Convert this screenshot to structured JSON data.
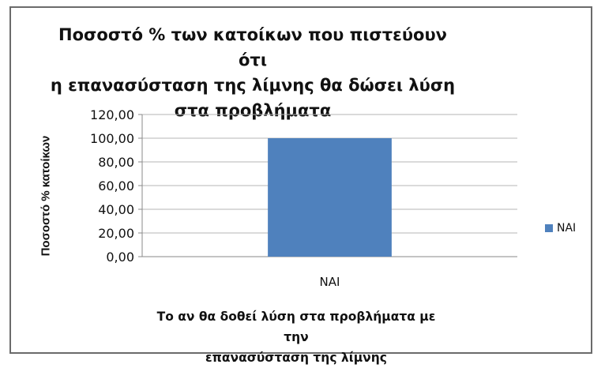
{
  "chart_data": {
    "type": "bar",
    "title": "Ποσοστό % των κατοίκων που πιστεύουν ότι η επανασύσταση της λίμνης θα δώσει λύση στα προβλήματα",
    "title_lines": [
      "Ποσοστό % των κατοίκων που πιστεύουν ότι",
      "η επανασύσταση της λίμνης θα δώσει λύση",
      "στα προβλήματα"
    ],
    "ylabel": "Ποσοστό % κατοίκων",
    "xlabel": "Το αν θα δοθεί λύση στα προβλήματα με την επανασύσταση της λίμνης",
    "xlabel_lines": [
      "Το αν θα δοθεί λύση στα προβλήματα με την",
      "επανασύσταση της λίμνης"
    ],
    "categories": [
      "ΝΑΙ"
    ],
    "series": [
      {
        "name": "ΝΑΙ",
        "values": [
          100.0
        ],
        "color": "#4f81bd"
      }
    ],
    "ylim": [
      0,
      120
    ],
    "yticks": [
      0,
      20,
      40,
      60,
      80,
      100,
      120
    ],
    "ytick_labels": [
      "0,00",
      "20,00",
      "40,00",
      "60,00",
      "80,00",
      "100,00",
      "120,00"
    ],
    "grid": true,
    "legend_position": "right"
  }
}
